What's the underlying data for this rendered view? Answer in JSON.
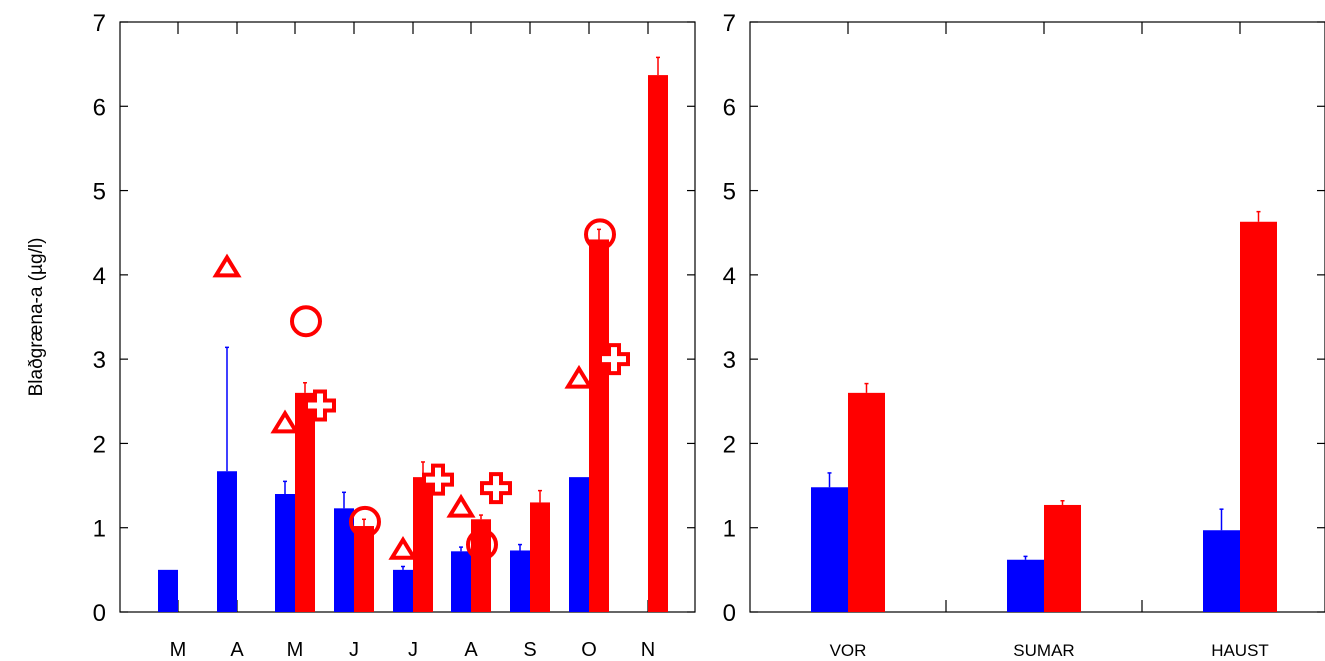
{
  "chart_data": [
    {
      "type": "bar",
      "ylabel": "Blaðgræna-a (µg/l)",
      "ylim": [
        0,
        7
      ],
      "yticks": [
        0,
        1,
        2,
        3,
        4,
        5,
        6,
        7
      ],
      "categories": [
        "M",
        "A",
        "M",
        "J",
        "J",
        "A",
        "S",
        "O",
        "N"
      ],
      "series": [
        {
          "color": "#0000ff",
          "values": [
            0.5,
            1.67,
            1.4,
            1.23,
            0.5,
            0.72,
            0.73,
            1.6,
            null
          ],
          "errors": [
            0,
            1.47,
            0.15,
            0.19,
            0.04,
            0.05,
            0.07,
            0,
            0
          ]
        },
        {
          "color": "#ff0000",
          "values": [
            null,
            null,
            2.6,
            1.02,
            1.6,
            1.1,
            1.3,
            4.42,
            6.37
          ],
          "errors": [
            0,
            0,
            0.12,
            0.08,
            0.18,
            0.05,
            0.14,
            0.12,
            0.21
          ]
        }
      ],
      "markers": {
        "triangle": [
          [
            1,
            4.1
          ],
          [
            2,
            2.25
          ],
          [
            4,
            0.75
          ],
          [
            5,
            1.25
          ],
          [
            7,
            2.78
          ]
        ],
        "circle": [
          [
            2,
            3.45
          ],
          [
            3,
            1.07
          ],
          [
            5,
            0.8
          ],
          [
            7,
            4.48
          ]
        ],
        "plus": [
          [
            2,
            2.45
          ],
          [
            4,
            1.57
          ],
          [
            5,
            1.47
          ],
          [
            7,
            3.0
          ]
        ],
        "color": "#ff0000"
      },
      "grid": false
    },
    {
      "type": "bar",
      "ylim": [
        0,
        7
      ],
      "yticks": [
        0,
        1,
        2,
        3,
        4,
        5,
        6,
        7
      ],
      "categories": [
        "VOR",
        "SUMAR",
        "HAUST"
      ],
      "series": [
        {
          "color": "#0000ff",
          "values": [
            1.48,
            0.62,
            0.97
          ],
          "errors": [
            0.17,
            0.04,
            0.25
          ]
        },
        {
          "color": "#ff0000",
          "values": [
            2.6,
            1.27,
            4.63
          ],
          "errors": [
            0.11,
            0.05,
            0.12
          ]
        }
      ],
      "grid": false
    }
  ]
}
